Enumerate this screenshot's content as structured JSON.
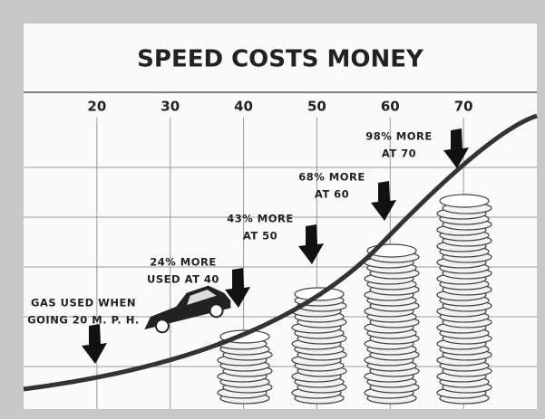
{
  "chart_data": {
    "type": "pictograph",
    "title": "SPEED COSTS MONEY",
    "xlim": [
      10,
      80
    ],
    "xticks": [
      20,
      30,
      40,
      50,
      60,
      70
    ],
    "grid": true,
    "annotations": [
      [
        "GAS USED WHEN",
        "GOING 20 M. P. H."
      ],
      [
        "24% MORE",
        "USED AT 40"
      ],
      [
        "43% MORE",
        "AT 50"
      ],
      [
        "68% MORE",
        "AT 60"
      ],
      [
        "98% MORE",
        "AT 70"
      ]
    ]
  }
}
